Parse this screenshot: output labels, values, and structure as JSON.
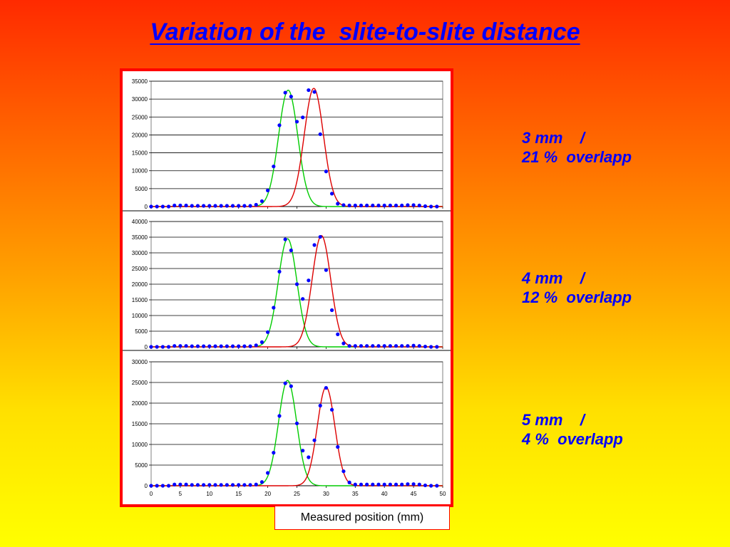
{
  "title": "Variation of the  slite-to-slite distance",
  "annotations": [
    {
      "line1": "3 mm    /",
      "line2": "21 %  overlapp"
    },
    {
      "line1": "4 mm    /",
      "line2": "12 %  overlapp"
    },
    {
      "line1": "5 mm    /",
      "line2": "4 %  overlapp"
    }
  ],
  "xlabel_box": "Measured position (mm)",
  "colors": {
    "points": "#0000ff",
    "fit_left": "#00cc00",
    "fit_right": "#dd0000",
    "frame": "#ff0000"
  },
  "chart_data": [
    {
      "type": "scatter",
      "xlabel": "Measured position (mm)",
      "xlim": [
        0,
        50
      ],
      "ylim": [
        0,
        35000
      ],
      "yticks": [
        0,
        5000,
        10000,
        15000,
        20000,
        25000,
        30000,
        35000
      ],
      "grid": true,
      "x": [
        0,
        1,
        2,
        3,
        4,
        5,
        6,
        7,
        8,
        9,
        10,
        11,
        12,
        13,
        14,
        15,
        16,
        17,
        18,
        19,
        20,
        21,
        22,
        23,
        24,
        25,
        26,
        27,
        28,
        29,
        30,
        31,
        32,
        33,
        34,
        35,
        36,
        37,
        38,
        39,
        40,
        41,
        42,
        43,
        44,
        45,
        46,
        47,
        48,
        49
      ],
      "series": [
        {
          "values": [
            0,
            0,
            0,
            0,
            300,
            300,
            300,
            200,
            200,
            200,
            200,
            200,
            200,
            200,
            200,
            200,
            200,
            200,
            500,
            1500,
            4500,
            11200,
            22700,
            31800,
            30700,
            23700,
            24900,
            32500,
            32000,
            20200,
            9800,
            3600,
            800,
            400,
            300,
            300,
            300,
            300,
            300,
            300,
            300,
            300,
            300,
            300,
            400,
            400,
            300,
            100,
            0,
            0
          ]
        }
      ],
      "fits": [
        {
          "mean": 23.5,
          "sigma": 1.65,
          "amplitude": 32500
        },
        {
          "mean": 27.9,
          "sigma": 1.65,
          "amplitude": 33000
        }
      ]
    },
    {
      "type": "scatter",
      "xlim": [
        0,
        50
      ],
      "ylim": [
        0,
        40000
      ],
      "yticks": [
        0,
        5000,
        10000,
        15000,
        20000,
        25000,
        30000,
        35000,
        40000
      ],
      "grid": true,
      "x": [
        0,
        1,
        2,
        3,
        4,
        5,
        6,
        7,
        8,
        9,
        10,
        11,
        12,
        13,
        14,
        15,
        16,
        17,
        18,
        19,
        20,
        21,
        22,
        23,
        24,
        25,
        26,
        27,
        28,
        29,
        30,
        31,
        32,
        33,
        34,
        35,
        36,
        37,
        38,
        39,
        40,
        41,
        42,
        43,
        44,
        45,
        46,
        47,
        48,
        49
      ],
      "series": [
        {
          "values": [
            0,
            0,
            0,
            0,
            300,
            300,
            300,
            200,
            200,
            200,
            200,
            200,
            200,
            200,
            200,
            200,
            200,
            200,
            500,
            1500,
            4700,
            12500,
            24000,
            34300,
            30800,
            20000,
            15300,
            21200,
            32500,
            35100,
            24500,
            11700,
            4000,
            1100,
            300,
            300,
            300,
            300,
            300,
            300,
            300,
            300,
            300,
            300,
            300,
            400,
            300,
            100,
            0,
            0
          ]
        }
      ],
      "fits": [
        {
          "mean": 23.4,
          "sigma": 1.6,
          "amplitude": 34500
        },
        {
          "mean": 29.2,
          "sigma": 1.6,
          "amplitude": 35500
        }
      ]
    },
    {
      "type": "scatter",
      "xlim": [
        0,
        50
      ],
      "ylim": [
        0,
        30000
      ],
      "yticks": [
        0,
        5000,
        10000,
        15000,
        20000,
        25000,
        30000
      ],
      "xticks": [
        0,
        5,
        10,
        15,
        20,
        25,
        30,
        35,
        40,
        45,
        50
      ],
      "grid": true,
      "x": [
        0,
        1,
        2,
        3,
        4,
        5,
        6,
        7,
        8,
        9,
        10,
        11,
        12,
        13,
        14,
        15,
        16,
        17,
        18,
        19,
        20,
        21,
        22,
        23,
        24,
        25,
        26,
        27,
        28,
        29,
        30,
        31,
        32,
        33,
        34,
        35,
        36,
        37,
        38,
        39,
        40,
        41,
        42,
        43,
        44,
        45,
        46,
        47,
        48,
        49
      ],
      "series": [
        {
          "values": [
            0,
            0,
            0,
            0,
            300,
            300,
            300,
            200,
            200,
            200,
            200,
            200,
            200,
            200,
            200,
            200,
            200,
            200,
            300,
            900,
            3100,
            8000,
            16900,
            24800,
            24100,
            15100,
            8500,
            6900,
            11000,
            19400,
            23700,
            18400,
            9400,
            3500,
            800,
            300,
            300,
            300,
            300,
            300,
            300,
            300,
            300,
            300,
            400,
            400,
            300,
            100,
            0,
            0
          ]
        }
      ],
      "fits": [
        {
          "mean": 23.4,
          "sigma": 1.55,
          "amplitude": 25500
        },
        {
          "mean": 30.0,
          "sigma": 1.5,
          "amplitude": 23900
        }
      ]
    }
  ]
}
